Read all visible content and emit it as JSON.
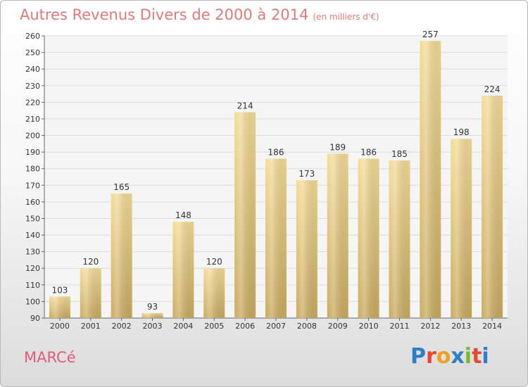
{
  "title": "Autres Revenus Divers de 2000 à 2014",
  "unit": "(en milliers d'€)",
  "city": "MARCé",
  "brand": {
    "letters": [
      "P",
      "r",
      "o",
      "x",
      "i",
      "t",
      "i"
    ],
    "colors": [
      "#2e7dc8",
      "#e8462e",
      "#f0a020",
      "#2e7dc8",
      "#7ab82e",
      "#e8462e",
      "#2e7dc8"
    ]
  },
  "chart_data": {
    "type": "bar",
    "categories": [
      "2000",
      "2001",
      "2002",
      "2003",
      "2004",
      "2005",
      "2006",
      "2007",
      "2008",
      "2009",
      "2010",
      "2011",
      "2012",
      "2013",
      "2014"
    ],
    "values": [
      103,
      120,
      165,
      93,
      148,
      120,
      214,
      186,
      173,
      189,
      186,
      185,
      257,
      198,
      224
    ],
    "ylim": [
      90,
      260
    ],
    "yticks": [
      90,
      100,
      110,
      120,
      130,
      140,
      150,
      160,
      170,
      180,
      190,
      200,
      210,
      220,
      230,
      240,
      250,
      260
    ],
    "grid": true,
    "bar_color": "#e8cc86"
  }
}
